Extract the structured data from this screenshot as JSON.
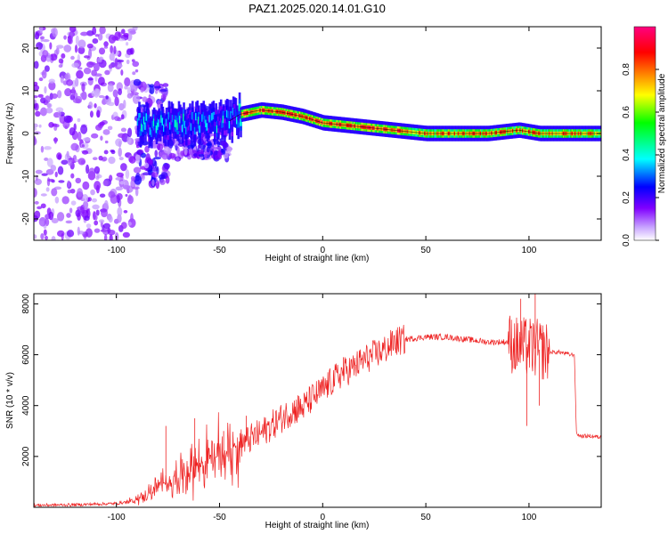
{
  "figure_title": "PAZ1.2025.020.14.01.G10",
  "chart_data": [
    {
      "type": "heatmap",
      "title": "PAZ1.2025.020.14.01.G10",
      "xlabel": "Height of straight line (km)",
      "ylabel": "Frequency (Hz)",
      "xlim": [
        -140,
        135
      ],
      "ylim": [
        -25,
        25
      ],
      "x_ticks": [
        -100,
        -50,
        0,
        50,
        100
      ],
      "y_ticks": [
        -20,
        -10,
        0,
        10,
        20
      ],
      "colorbar": {
        "label": "Normalized spectral amplitude",
        "range": [
          0,
          1
        ],
        "ticks": [
          0.0,
          0.2,
          0.4,
          0.6,
          0.8
        ],
        "colors": [
          "#ffffff",
          "#8000ff",
          "#0000ff",
          "#00ffff",
          "#00ff00",
          "#ffff00",
          "#ff8000",
          "#ff0000",
          "#ff0080"
        ]
      },
      "ridge": {
        "description_points": [
          {
            "x": -80,
            "y": 2
          },
          {
            "x": -60,
            "y": 2.5
          },
          {
            "x": -45,
            "y": 3
          },
          {
            "x": -40,
            "y": 4.5
          },
          {
            "x": -30,
            "y": 5.5
          },
          {
            "x": -20,
            "y": 5
          },
          {
            "x": -10,
            "y": 4
          },
          {
            "x": 0,
            "y": 2.5
          },
          {
            "x": 10,
            "y": 2
          },
          {
            "x": 20,
            "y": 1.5
          },
          {
            "x": 30,
            "y": 1
          },
          {
            "x": 50,
            "y": 0
          },
          {
            "x": 80,
            "y": 0
          },
          {
            "x": 95,
            "y": 0.8
          },
          {
            "x": 105,
            "y": 0
          },
          {
            "x": 135,
            "y": 0
          }
        ]
      }
    },
    {
      "type": "line",
      "xlabel": "Height of straight line (km)",
      "ylabel": "SNR (10 * v/v)",
      "xlim": [
        -140,
        135
      ],
      "ylim": [
        0,
        8400
      ],
      "x_ticks": [
        -100,
        -50,
        0,
        50,
        100
      ],
      "y_ticks": [
        2000,
        4000,
        6000,
        8000
      ],
      "color": "#ee2222",
      "series": [
        {
          "x": [
            -140,
            -120,
            -100,
            -92,
            -85,
            -80,
            -75,
            -70,
            -65,
            -60,
            -55,
            -50,
            -45,
            -40,
            -35,
            -30,
            -25,
            -20,
            -15,
            -10,
            -5,
            0,
            5,
            10,
            15,
            20,
            25,
            30,
            35,
            40,
            50,
            60,
            70,
            80,
            85,
            90,
            95,
            100,
            105,
            110,
            115,
            120,
            122,
            123,
            125,
            130,
            135
          ],
          "values": [
            80,
            100,
            150,
            250,
            500,
            800,
            1000,
            1200,
            1500,
            1700,
            1900,
            2000,
            2300,
            2500,
            2700,
            2900,
            3200,
            3500,
            3800,
            3900,
            4300,
            4600,
            5000,
            5300,
            5500,
            5800,
            6000,
            6200,
            6500,
            6600,
            6700,
            6700,
            6600,
            6500,
            6500,
            6500,
            6300,
            6300,
            6200,
            6100,
            6100,
            6000,
            6000,
            2900,
            2800,
            2800,
            2750
          ],
          "spikes": [
            {
              "x": -76,
              "y": 3200
            },
            {
              "x": -62,
              "y": 3500
            },
            {
              "x": -48,
              "y": 3000
            },
            {
              "x": -37,
              "y": 3600
            },
            {
              "x": -12,
              "y": 4400
            },
            {
              "x": 10,
              "y": 5900
            },
            {
              "x": 96,
              "y": 8200
            },
            {
              "x": 99,
              "y": 3200
            },
            {
              "x": 103,
              "y": 8400
            },
            {
              "x": 105,
              "y": 4000
            }
          ]
        }
      ]
    }
  ]
}
